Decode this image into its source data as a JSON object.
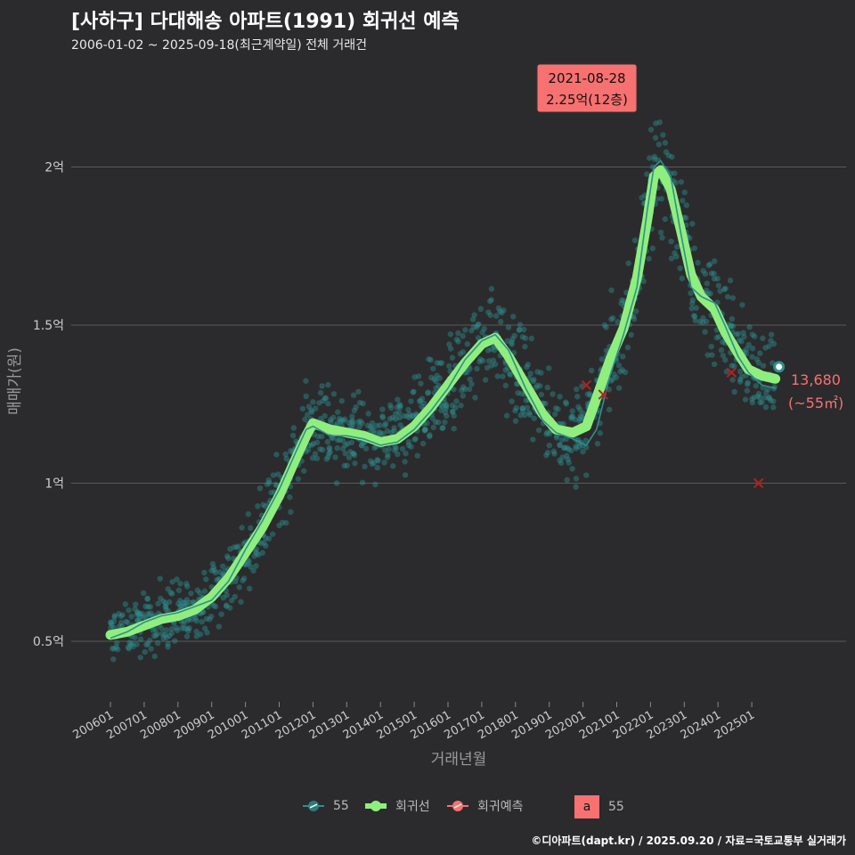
{
  "title": "[사하구] 다대해송 아파트(1991) 회귀선 예측",
  "subtitle": "2006-01-02 ~ 2025-09-18(최근계약일) 전체 거래건",
  "footer": "©디아파트(dapt.kr) / 2025.09.20 / 자료=국토교통부 실거래가",
  "colors": {
    "scatter": "#2f8f8f",
    "regression": "#90ee7e",
    "forecast": "#f87171",
    "background": "#2b2b2d"
  },
  "chart_data": {
    "type": "scatter",
    "xlabel": "거래년월",
    "ylabel": "매매가(원)",
    "x_ticks": [
      "200601",
      "200701",
      "200801",
      "200901",
      "201001",
      "201101",
      "201201",
      "201301",
      "201401",
      "201501",
      "201601",
      "201701",
      "201801",
      "201901",
      "202001",
      "202101",
      "202201",
      "202301",
      "202401",
      "202501"
    ],
    "y_ticks": [
      {
        "value": 0.5,
        "label": "0.5억"
      },
      {
        "value": 1.0,
        "label": "1억"
      },
      {
        "value": 1.5,
        "label": "1.5억"
      },
      {
        "value": 2.0,
        "label": "2억"
      }
    ],
    "ylim": [
      0.3,
      2.4
    ],
    "xlim": [
      2005.7,
      2026.2
    ],
    "series": [
      {
        "name": "회귀선",
        "x": [
          2006.0,
          2006.5,
          2007.0,
          2007.5,
          2008.0,
          2008.5,
          2009.0,
          2009.5,
          2010.0,
          2010.5,
          2011.0,
          2011.5,
          2011.8,
          2012.0,
          2012.5,
          2013.0,
          2013.5,
          2014.0,
          2014.5,
          2015.0,
          2015.5,
          2016.0,
          2016.5,
          2017.0,
          2017.4,
          2017.8,
          2018.3,
          2018.8,
          2019.2,
          2019.7,
          2020.1,
          2020.4,
          2020.8,
          2021.2,
          2021.6,
          2021.9,
          2022.1,
          2022.3,
          2022.6,
          2022.9,
          2023.2,
          2023.5,
          2023.9,
          2024.2,
          2024.6,
          2024.9,
          2025.3,
          2025.7
        ],
        "values": [
          0.52,
          0.53,
          0.55,
          0.57,
          0.58,
          0.6,
          0.64,
          0.7,
          0.78,
          0.86,
          0.96,
          1.08,
          1.15,
          1.19,
          1.17,
          1.16,
          1.15,
          1.13,
          1.14,
          1.18,
          1.24,
          1.31,
          1.38,
          1.44,
          1.46,
          1.4,
          1.31,
          1.22,
          1.17,
          1.16,
          1.18,
          1.27,
          1.39,
          1.49,
          1.65,
          1.83,
          1.97,
          1.99,
          1.93,
          1.8,
          1.66,
          1.59,
          1.55,
          1.48,
          1.41,
          1.36,
          1.34,
          1.33
        ]
      },
      {
        "name": "55",
        "x": [
          2006.0,
          2006.5,
          2007.0,
          2007.5,
          2008.0,
          2008.5,
          2009.0,
          2009.5,
          2010.0,
          2010.5,
          2011.0,
          2011.5,
          2011.8,
          2012.0,
          2012.5,
          2013.0,
          2013.5,
          2014.0,
          2014.5,
          2015.0,
          2015.5,
          2016.0,
          2016.5,
          2017.0,
          2017.4,
          2017.8,
          2018.3,
          2018.8,
          2019.2,
          2019.7,
          2020.1,
          2020.4,
          2020.8,
          2021.2,
          2021.6,
          2021.9,
          2022.1,
          2022.3,
          2022.6,
          2022.9,
          2023.2,
          2023.5,
          2023.9,
          2024.2,
          2024.6,
          2024.9,
          2025.3,
          2025.7
        ],
        "values": [
          0.51,
          0.53,
          0.56,
          0.58,
          0.59,
          0.61,
          0.63,
          0.69,
          0.79,
          0.88,
          0.98,
          1.1,
          1.17,
          1.18,
          1.15,
          1.15,
          1.14,
          1.12,
          1.13,
          1.17,
          1.23,
          1.3,
          1.39,
          1.45,
          1.47,
          1.42,
          1.3,
          1.2,
          1.16,
          1.14,
          1.12,
          1.17,
          1.34,
          1.47,
          1.62,
          1.86,
          2.0,
          2.02,
          1.97,
          1.79,
          1.62,
          1.59,
          1.57,
          1.5,
          1.4,
          1.35,
          1.31,
          1.3
        ]
      }
    ],
    "forecast_points": [
      {
        "x": 2020.1,
        "y": 1.31
      },
      {
        "x": 2020.6,
        "y": 1.28
      },
      {
        "x": 2024.4,
        "y": 1.35
      },
      {
        "x": 2025.2,
        "y": 1.0
      }
    ],
    "latest_point": {
      "x": 2025.7,
      "y": 1.368
    },
    "annotation_top": {
      "date": "2021-08-28",
      "value": "2.25억(12층)",
      "x": 2021.65,
      "y": 2.25
    },
    "annotation_end": {
      "value": "13,680",
      "area": "(~55㎡)"
    }
  },
  "legend": {
    "items": [
      "55",
      "회귀선",
      "회귀예측"
    ],
    "box_letter": "a",
    "box_label": "55"
  }
}
